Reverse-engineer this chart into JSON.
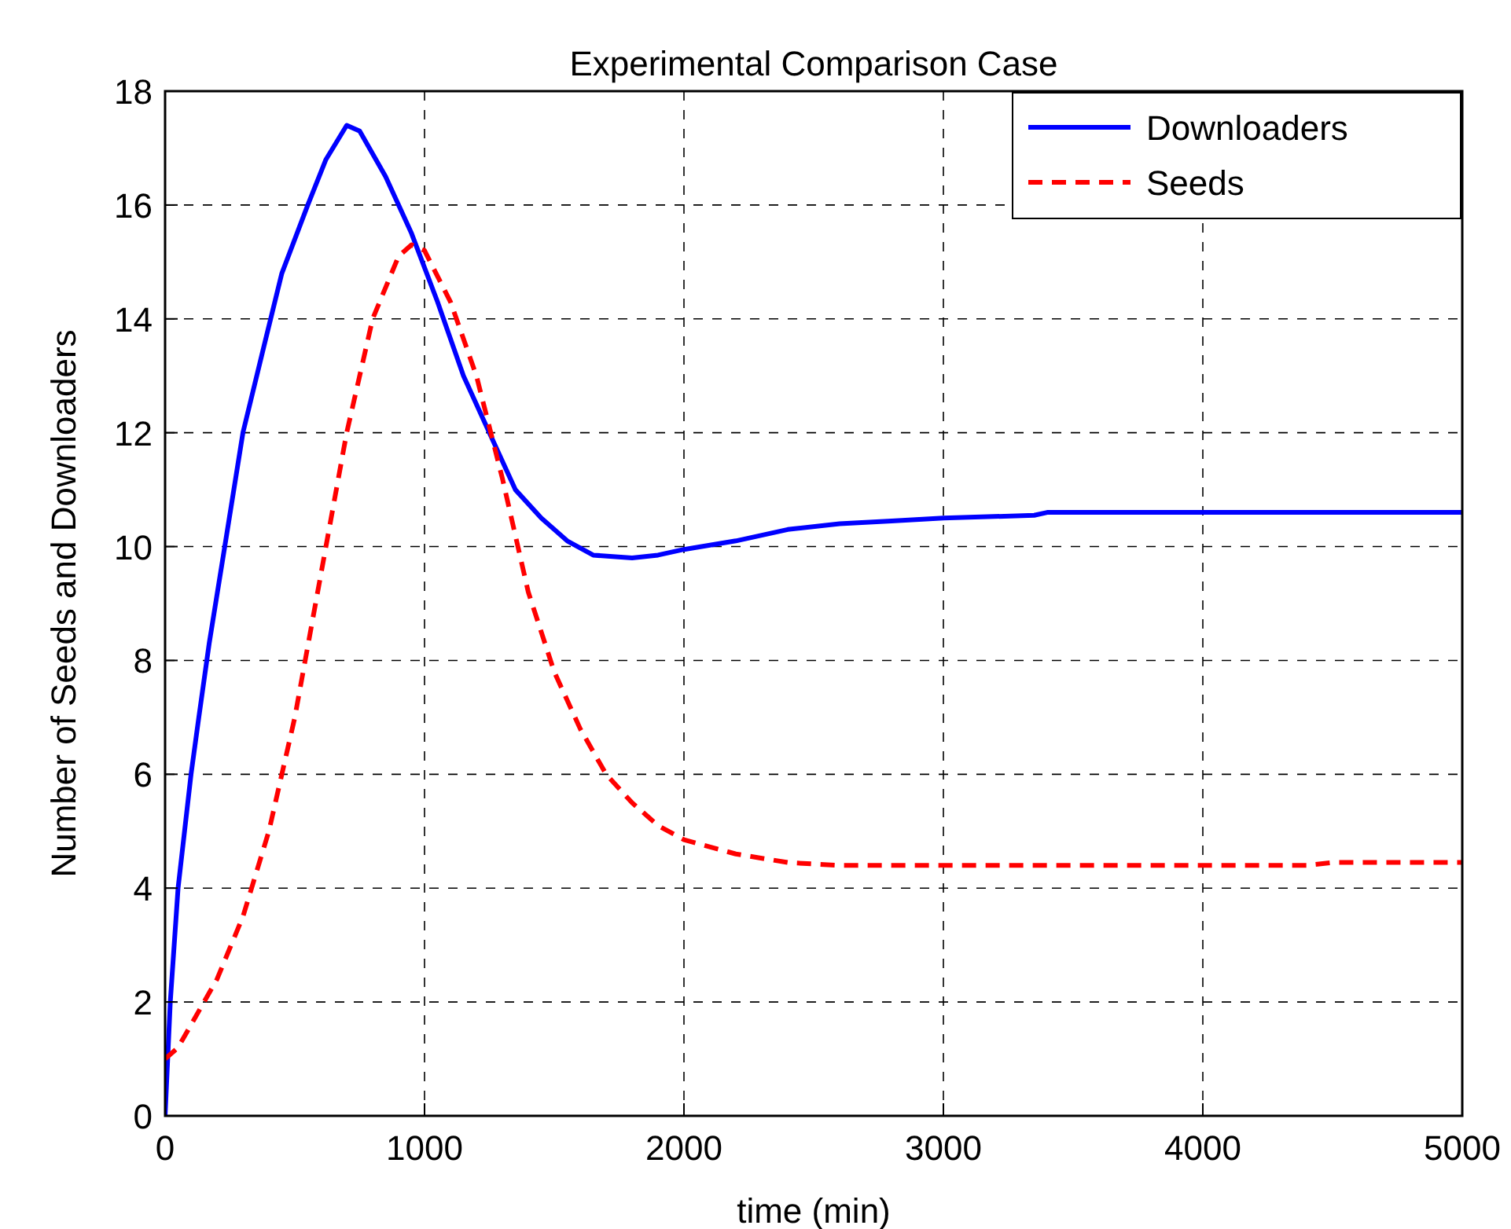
{
  "chart_data": {
    "type": "line",
    "title": "Experimental Comparison Case",
    "xlabel": "time (min)",
    "ylabel": "Number of Seeds and Downloaders",
    "xlim": [
      0,
      5000
    ],
    "xticks": [
      0,
      1000,
      2000,
      3000,
      4000,
      5000
    ],
    "ylim": [
      0,
      18
    ],
    "yticks": [
      0,
      2,
      4,
      6,
      8,
      10,
      12,
      14,
      16,
      18
    ],
    "grid": true,
    "legend": "top right",
    "series": [
      {
        "name": "Downloaders",
        "color": "#0000ff",
        "line_style": "solid",
        "x": [
          0,
          20,
          50,
          100,
          130,
          170,
          230,
          300,
          380,
          450,
          550,
          620,
          700,
          750,
          850,
          950,
          1050,
          1150,
          1250,
          1350,
          1450,
          1550,
          1650,
          1800,
          1900,
          2000,
          2200,
          2400,
          2600,
          2800,
          3000,
          3350,
          3400,
          5000
        ],
        "values": [
          0,
          2,
          4,
          6,
          7,
          8.3,
          10,
          12,
          13.5,
          14.8,
          16,
          16.8,
          17.4,
          17.3,
          16.5,
          15.5,
          14.3,
          13,
          12,
          11,
          10.5,
          10.1,
          9.85,
          9.8,
          9.85,
          9.95,
          10.1,
          10.3,
          10.4,
          10.45,
          10.5,
          10.55,
          10.6,
          10.6
        ]
      },
      {
        "name": "Seeds",
        "color": "#ff0000",
        "line_style": "dashed",
        "x": [
          0,
          50,
          100,
          200,
          300,
          400,
          500,
          600,
          700,
          800,
          900,
          950,
          1000,
          1100,
          1200,
          1300,
          1400,
          1500,
          1600,
          1700,
          1800,
          1900,
          2000,
          2200,
          2400,
          2600,
          4400,
          4500,
          5000
        ],
        "values": [
          1,
          1.2,
          1.6,
          2.4,
          3.5,
          5,
          7,
          9.5,
          12,
          14,
          15.1,
          15.3,
          15.2,
          14.3,
          13,
          11.2,
          9.2,
          7.8,
          6.8,
          6,
          5.5,
          5.1,
          4.85,
          4.6,
          4.45,
          4.4,
          4.4,
          4.45,
          4.45
        ]
      }
    ]
  }
}
